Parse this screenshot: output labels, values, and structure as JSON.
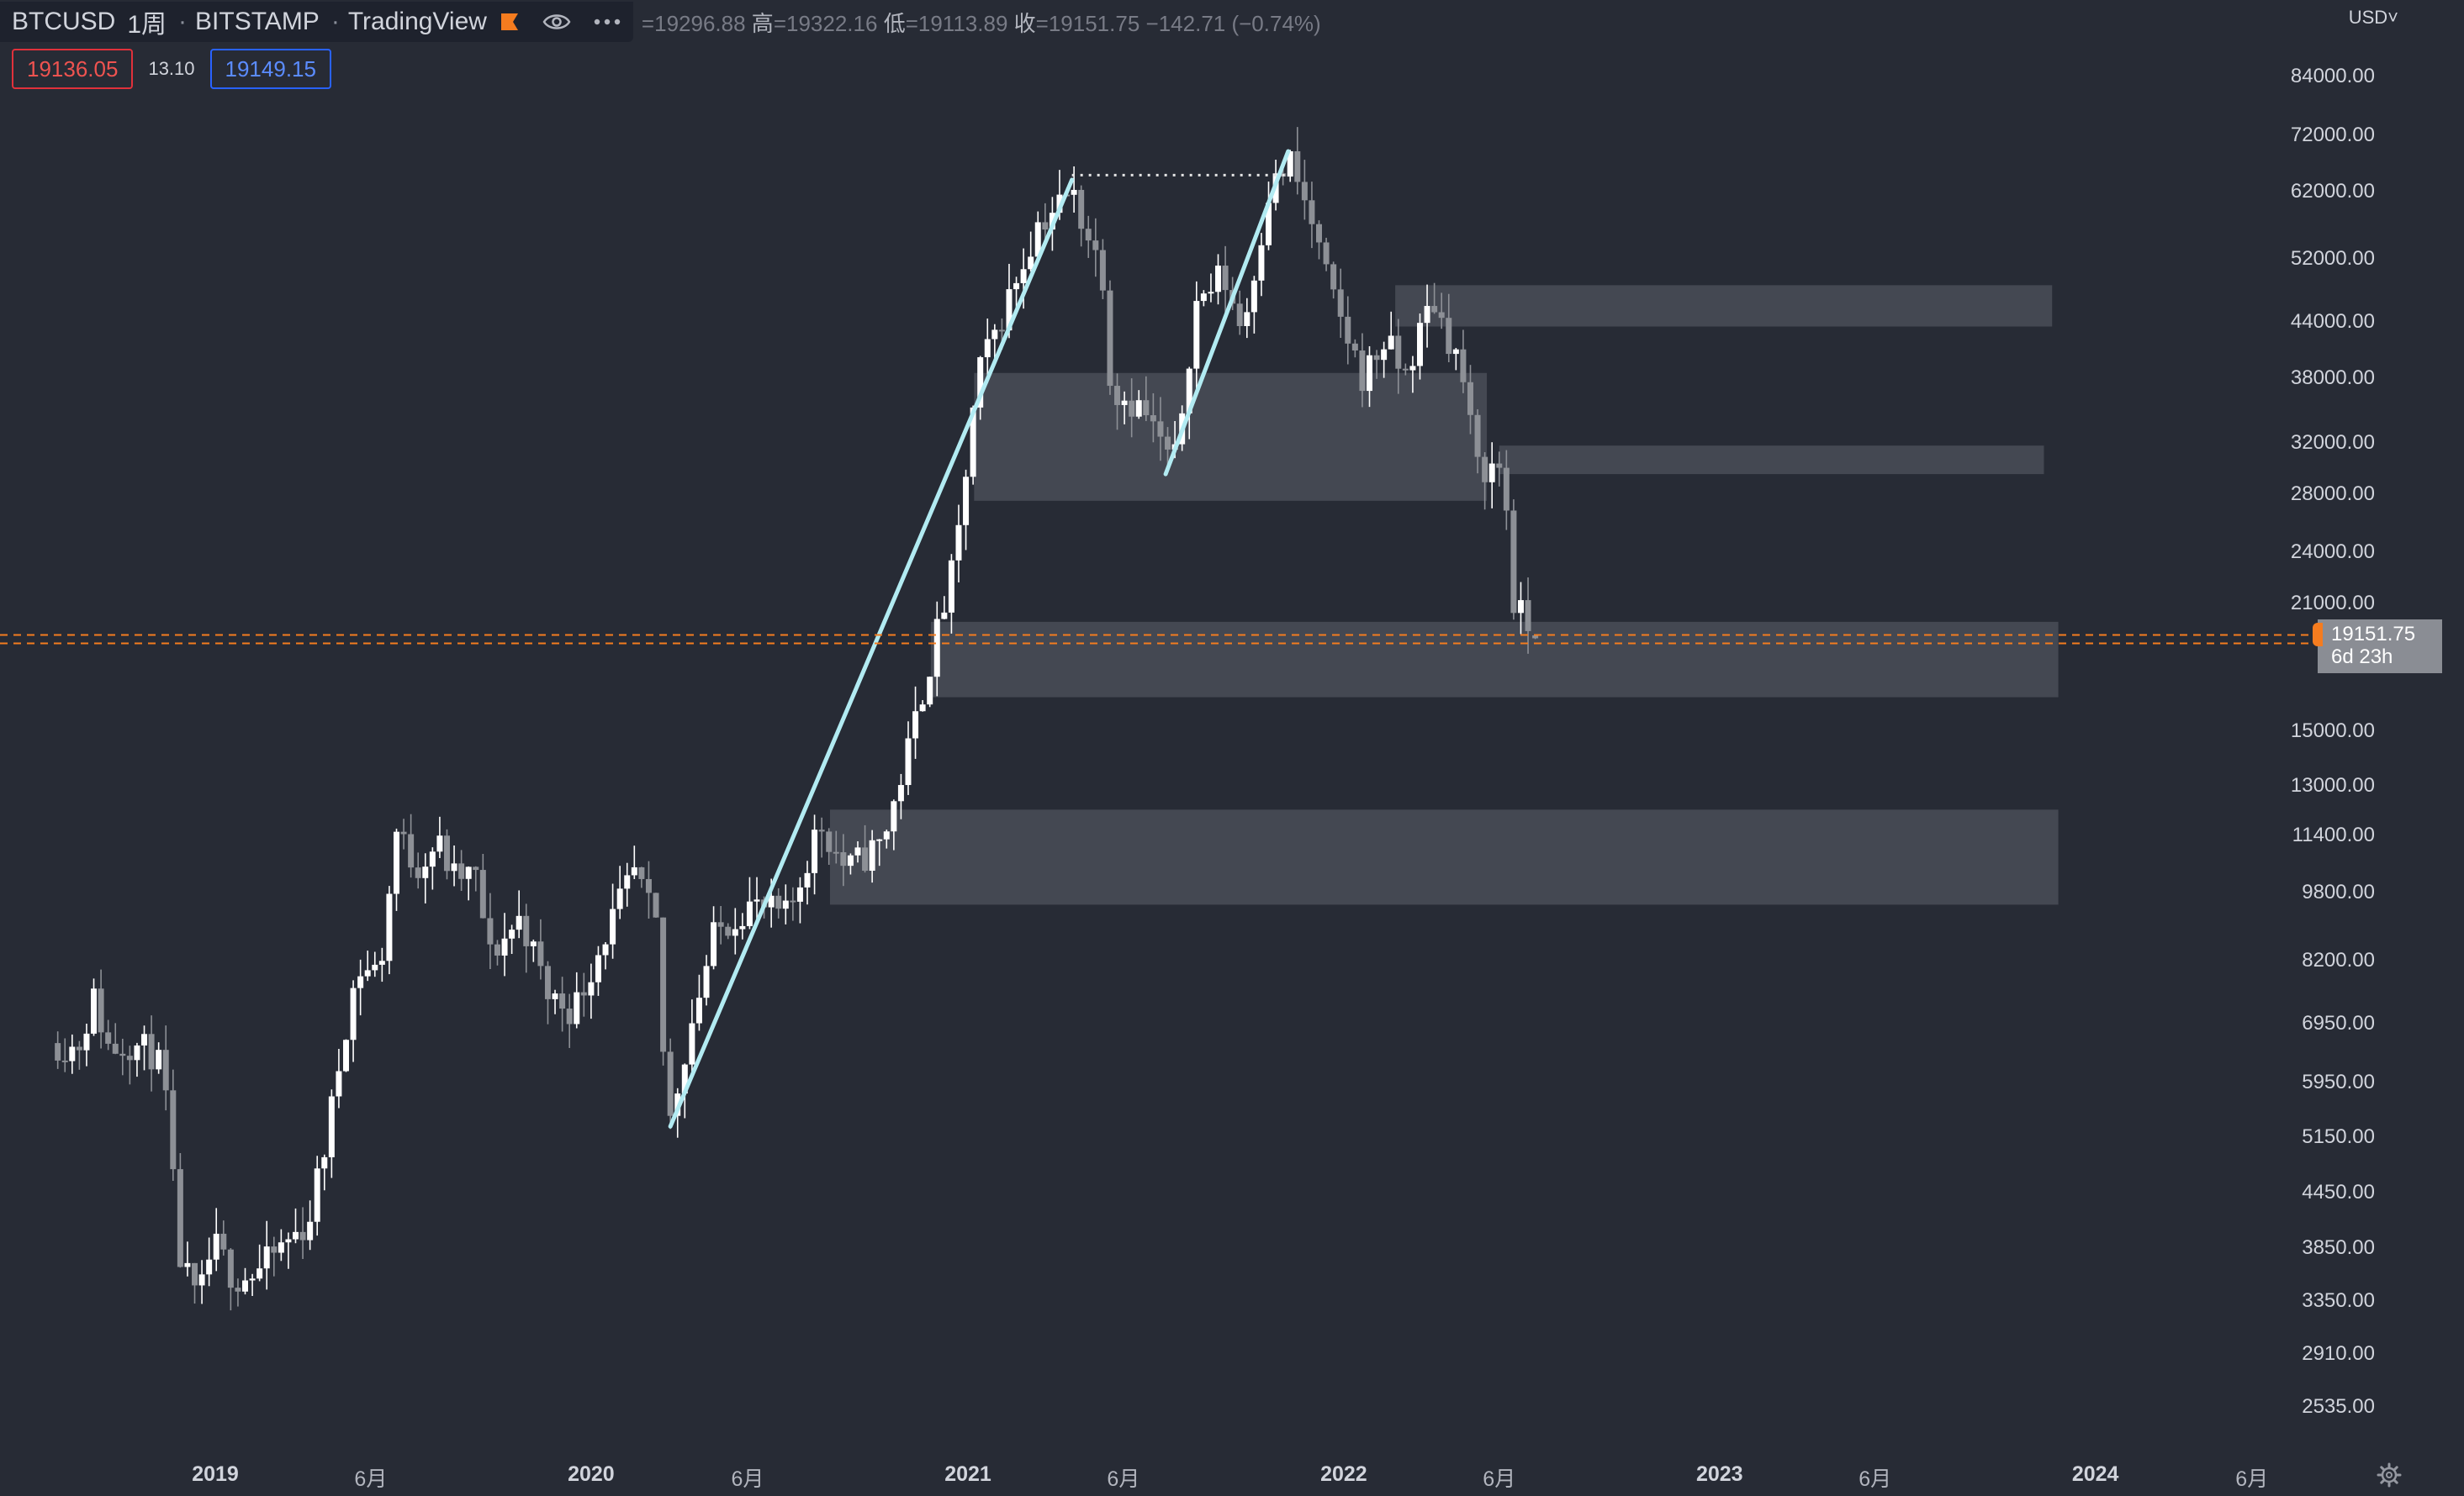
{
  "header": {
    "symbol": "BTCUSD",
    "interval": "1周",
    "exchange": "BITSTAMP",
    "source": "TradingView",
    "ohlc": {
      "open_label": "",
      "open": "=19296.88",
      "high_label": "高",
      "high": "=19322.16",
      "low_label": "低",
      "low": "=19113.89",
      "close_label": "收",
      "close": "=19151.75",
      "change": "−142.71 (−0.74%)"
    }
  },
  "trade": {
    "sell": "19136.05",
    "spread": "13.10",
    "buy": "19149.15"
  },
  "price_axis": {
    "currency": "USD˅",
    "ticks": [
      "84000.00",
      "72000.00",
      "62000.00",
      "52000.00",
      "44000.00",
      "38000.00",
      "32000.00",
      "28000.00",
      "24000.00",
      "21000.00",
      "15000.00",
      "13000.00",
      "11400.00",
      "9800.00",
      "8200.00",
      "6950.00",
      "5950.00",
      "5150.00",
      "4450.00",
      "3850.00",
      "3350.00",
      "2910.00",
      "2535.00"
    ],
    "last_price": "19151.75",
    "countdown": "6d 23h"
  },
  "time_axis": {
    "labels": [
      {
        "text": "2019",
        "year": true
      },
      {
        "text": "6月",
        "year": false
      },
      {
        "text": "2020",
        "year": true
      },
      {
        "text": "6月",
        "year": false
      },
      {
        "text": "2021",
        "year": true
      },
      {
        "text": "6月",
        "year": false
      },
      {
        "text": "2022",
        "year": true
      },
      {
        "text": "6月",
        "year": false
      },
      {
        "text": "2023",
        "year": true
      },
      {
        "text": "6月",
        "year": false
      },
      {
        "text": "2024",
        "year": true
      },
      {
        "text": "6月",
        "year": false
      }
    ]
  },
  "colors": {
    "background": "#272b35",
    "candle_up": "#ffffff",
    "candle_down": "#8d9096",
    "zone": "#4a4d57",
    "trendline": "#b2ebf2",
    "last_price_line": "#f57c1f",
    "sell": "#ef5350",
    "buy": "#2962ff"
  },
  "chart_data": {
    "type": "candlestick",
    "interval": "1W",
    "scale": "log",
    "ylim": [
      2400,
      90000
    ],
    "xlim": [
      "2018-08-01",
      "2024-08-25"
    ],
    "price_path": [
      [
        "2018-08-01",
        6600
      ],
      [
        "2018-08-20",
        6500
      ],
      [
        "2018-09-05",
        7400
      ],
      [
        "2018-09-20",
        6500
      ],
      [
        "2018-10-10",
        6600
      ],
      [
        "2018-11-05",
        6400
      ],
      [
        "2018-11-15",
        5600
      ],
      [
        "2018-11-26",
        3800
      ],
      [
        "2018-12-15",
        3300
      ],
      [
        "2018-12-30",
        3900
      ],
      [
        "2019-01-20",
        3550
      ],
      [
        "2019-02-10",
        3600
      ],
      [
        "2019-03-10",
        3900
      ],
      [
        "2019-04-01",
        4100
      ],
      [
        "2019-04-20",
        5200
      ],
      [
        "2019-05-10",
        7200
      ],
      [
        "2019-05-20",
        8000
      ],
      [
        "2019-06-10",
        8000
      ],
      [
        "2019-06-26",
        11500
      ],
      [
        "2019-07-15",
        10500
      ],
      [
        "2019-08-05",
        11200
      ],
      [
        "2019-08-20",
        10200
      ],
      [
        "2019-09-10",
        10300
      ],
      [
        "2019-09-25",
        8300
      ],
      [
        "2019-10-25",
        9200
      ],
      [
        "2019-11-20",
        7500
      ],
      [
        "2019-12-15",
        7200
      ],
      [
        "2020-01-15",
        8800
      ],
      [
        "2020-02-12",
        10300
      ],
      [
        "2020-03-05",
        8900
      ],
      [
        "2020-03-15",
        5200
      ],
      [
        "2020-04-05",
        6800
      ],
      [
        "2020-04-30",
        8800
      ],
      [
        "2020-06-01",
        9500
      ],
      [
        "2020-07-10",
        9200
      ],
      [
        "2020-08-10",
        11800
      ],
      [
        "2020-09-05",
        10400
      ],
      [
        "2020-10-10",
        11200
      ],
      [
        "2020-11-01",
        13800
      ],
      [
        "2020-11-25",
        18000
      ],
      [
        "2020-12-20",
        23500
      ],
      [
        "2021-01-10",
        38000
      ],
      [
        "2021-02-10",
        47000
      ],
      [
        "2021-03-10",
        57000
      ],
      [
        "2021-04-12",
        62000
      ],
      [
        "2021-05-12",
        50000
      ],
      [
        "2021-05-20",
        37000
      ],
      [
        "2021-06-20",
        35000
      ],
      [
        "2021-07-20",
        30000
      ],
      [
        "2021-08-10",
        46000
      ],
      [
        "2021-09-05",
        50000
      ],
      [
        "2021-09-25",
        43000
      ],
      [
        "2021-10-20",
        62000
      ],
      [
        "2021-11-10",
        67000
      ],
      [
        "2021-12-01",
        57000
      ],
      [
        "2021-12-20",
        47000
      ],
      [
        "2022-01-20",
        38000
      ],
      [
        "2022-02-10",
        42000
      ],
      [
        "2022-03-01",
        38000
      ],
      [
        "2022-03-28",
        47000
      ],
      [
        "2022-04-25",
        39000
      ],
      [
        "2022-05-10",
        30000
      ],
      [
        "2022-06-05",
        30000
      ],
      [
        "2022-06-15",
        21000
      ],
      [
        "2022-07-04",
        19151.75
      ]
    ],
    "last_candle": {
      "open": 19296.88,
      "high": 19322.16,
      "low": 19113.89,
      "close": 19151.75
    },
    "zones": [
      {
        "start": "2022-02-20",
        "end": "2023-11-20",
        "low": 43500,
        "high": 48500
      },
      {
        "start": "2021-01-07",
        "end": "2022-05-20",
        "low": 27500,
        "high": 38500
      },
      {
        "start": "2022-06-01",
        "end": "2023-11-12",
        "low": 29500,
        "high": 31800
      },
      {
        "start": "2020-11-26",
        "end": "2023-11-26",
        "low": 16400,
        "high": 20000
      },
      {
        "start": "2020-08-20",
        "end": "2023-11-26",
        "low": 9500,
        "high": 12200
      }
    ],
    "trendlines": [
      {
        "from": [
          "2020-03-18",
          5300
        ],
        "to": [
          "2021-04-12",
          64000
        ]
      },
      {
        "from": [
          "2021-07-12",
          29500
        ],
        "to": [
          "2021-11-08",
          69000
        ]
      }
    ],
    "dotted_level": {
      "from": "2021-04-12",
      "to": "2021-11-08",
      "price": 64800
    }
  }
}
